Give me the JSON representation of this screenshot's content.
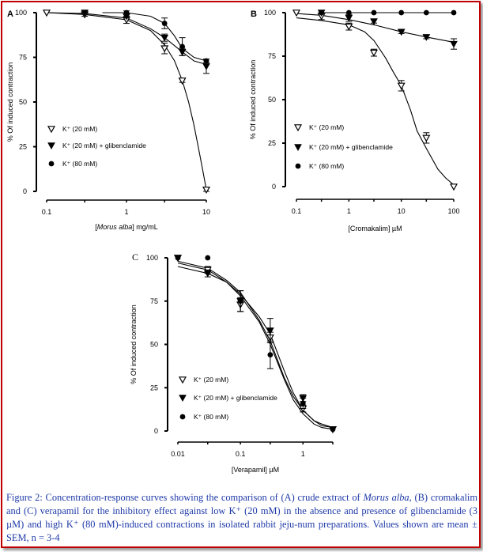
{
  "chart_data": [
    {
      "type": "line",
      "panel": "A",
      "xlabel_pre": "[",
      "xlabel_italic": "Morus alba",
      "xlabel_post": "] mg/mL",
      "ylabel": "% Of induced contraction",
      "xscale": "log",
      "xlim": [
        0.1,
        10
      ],
      "ylim": [
        0,
        100
      ],
      "xticks": [
        0.1,
        0.3,
        1,
        3,
        10
      ],
      "xticklabels": [
        "0.1",
        "1",
        "10"
      ],
      "xticklabel_values": [
        0.1,
        1,
        10
      ],
      "yticks": [
        0,
        25,
        50,
        75,
        100
      ],
      "yticklabels": [
        "0",
        "25",
        "50",
        "75",
        "100"
      ],
      "legend": [
        "K⁺ (20 mM)",
        "K⁺ (20 mM) + glibenclamide",
        "K⁺ (80 mM)"
      ],
      "series": [
        {
          "name": "K⁺ (20 mM)",
          "marker": "open-triangle",
          "x": [
            0.1,
            0.3,
            1,
            3,
            5,
            10
          ],
          "y": [
            100,
            99,
            96,
            80,
            62,
            1
          ],
          "err": [
            0,
            1,
            2,
            3,
            1,
            1
          ],
          "curve": [
            [
              0.1,
              100
            ],
            [
              0.3,
              99
            ],
            [
              1,
              96
            ],
            [
              2,
              90
            ],
            [
              3,
              82
            ],
            [
              4,
              73
            ],
            [
              5,
              62
            ],
            [
              6,
              50
            ],
            [
              7,
              37
            ],
            [
              8,
              24
            ],
            [
              9,
              12
            ],
            [
              10,
              1
            ]
          ]
        },
        {
          "name": "K⁺ (20 mM) + glibenclamide",
          "marker": "filled-triangle",
          "x": [
            0.3,
            1,
            3,
            5,
            10
          ],
          "y": [
            100,
            98,
            86,
            78,
            70
          ],
          "err": [
            0,
            1,
            2,
            2,
            4
          ],
          "curve": [
            [
              0.1,
              100
            ],
            [
              0.3,
              99.5
            ],
            [
              1,
              97
            ],
            [
              2,
              91
            ],
            [
              3,
              86
            ],
            [
              5,
              78
            ],
            [
              7,
              73
            ],
            [
              10,
              71
            ]
          ]
        },
        {
          "name": "K⁺ (80 mM)",
          "marker": "filled-circle",
          "x": [
            1,
            3,
            5,
            10
          ],
          "y": [
            100,
            94,
            81,
            73
          ],
          "err": [
            1,
            3,
            5,
            1
          ],
          "curve": [
            [
              0.5,
              100
            ],
            [
              1,
              100
            ],
            [
              2,
              98
            ],
            [
              3,
              94
            ],
            [
              4,
              87
            ],
            [
              5,
              80
            ],
            [
              7,
              75
            ],
            [
              10,
              73
            ]
          ]
        }
      ]
    },
    {
      "type": "line",
      "panel": "B",
      "xlabel": "[Cromakalim] µM",
      "ylabel": "% Of induced contraction",
      "xscale": "log",
      "xlim": [
        0.1,
        100
      ],
      "ylim": [
        0,
        100
      ],
      "xticks": [
        0.1,
        0.3,
        1,
        3,
        10,
        30,
        100
      ],
      "xticklabels": [
        "0.1",
        "1",
        "10",
        "100"
      ],
      "xticklabel_values": [
        0.1,
        1,
        10,
        100
      ],
      "yticks": [
        0,
        25,
        50,
        75,
        100
      ],
      "yticklabels": [
        "0",
        "25",
        "50",
        "75",
        "100"
      ],
      "legend": [
        "K⁺ (20 mM)",
        "K⁺ (20 mM) + glibenclamide",
        "K⁺ (80 mM)"
      ],
      "series": [
        {
          "name": "K⁺ (20 mM)",
          "marker": "open-triangle",
          "x": [
            0.1,
            0.3,
            1,
            3,
            10,
            30,
            100
          ],
          "y": [
            100,
            98,
            92,
            77,
            58,
            28,
            0
          ],
          "err": [
            0,
            2,
            2,
            2,
            3,
            3,
            0
          ],
          "curve": [
            [
              0.1,
              97
            ],
            [
              0.3,
              95.5
            ],
            [
              1,
              93
            ],
            [
              2,
              89
            ],
            [
              3,
              84
            ],
            [
              5,
              74
            ],
            [
              7,
              66
            ],
            [
              10,
              58
            ],
            [
              15,
              44
            ],
            [
              20,
              32
            ],
            [
              30,
              22
            ],
            [
              50,
              10
            ],
            [
              70,
              5
            ],
            [
              100,
              1
            ]
          ]
        },
        {
          "name": "K⁺ (20 mM) + glibenclamide",
          "marker": "filled-triangle",
          "x": [
            0.3,
            1,
            3,
            10,
            30,
            100
          ],
          "y": [
            100,
            97,
            95,
            89,
            86,
            82
          ],
          "err": [
            0,
            2,
            1,
            1,
            1,
            3
          ],
          "curve": [
            [
              0.1,
              99.5
            ],
            [
              0.3,
              98.5
            ],
            [
              1,
              96
            ],
            [
              3,
              93
            ],
            [
              10,
              89
            ],
            [
              30,
              86
            ],
            [
              100,
              83
            ]
          ]
        },
        {
          "name": "K⁺ (80 mM)",
          "marker": "filled-circle",
          "x": [
            0.3,
            1,
            3,
            10,
            30,
            100
          ],
          "y": [
            100,
            100,
            100,
            100,
            100,
            100
          ],
          "err": [
            0,
            0,
            0,
            0,
            0,
            0
          ],
          "curve": [
            [
              0.3,
              100
            ],
            [
              100,
              100
            ]
          ]
        }
      ]
    },
    {
      "type": "line",
      "panel": "C",
      "xlabel": "[Verapamil] µM",
      "ylabel": "% Of induced contraction",
      "xscale": "log",
      "xlim": [
        0.01,
        3
      ],
      "ylim": [
        0,
        100
      ],
      "xticks": [
        0.01,
        0.03,
        0.1,
        0.3,
        1,
        3
      ],
      "xticklabels": [
        "0.01",
        "0.1",
        "1"
      ],
      "xticklabel_values": [
        0.01,
        0.1,
        1
      ],
      "yticks": [
        0,
        25,
        50,
        75,
        100
      ],
      "yticklabels": [
        "0",
        "25",
        "50",
        "75",
        "100"
      ],
      "legend": [
        "K⁺ (20 mM)",
        "K⁺ (20 mM) + glibenclamide",
        "K⁺ (80 mM)"
      ],
      "series": [
        {
          "name": "K⁺ (20 mM)",
          "marker": "open-triangle",
          "x": [
            0.01,
            0.03,
            0.1,
            0.3,
            1,
            3
          ],
          "y": [
            100,
            93,
            73,
            54,
            13,
            1
          ],
          "err": [
            0,
            2,
            4,
            3,
            2,
            0
          ],
          "curve": [
            [
              0.01,
              97
            ],
            [
              0.03,
              93
            ],
            [
              0.06,
              86
            ],
            [
              0.1,
              79
            ],
            [
              0.2,
              66
            ],
            [
              0.3,
              56
            ],
            [
              0.5,
              35
            ],
            [
              0.7,
              22
            ],
            [
              1,
              12
            ],
            [
              1.5,
              6
            ],
            [
              2,
              3
            ],
            [
              3,
              2
            ]
          ]
        },
        {
          "name": "K⁺ (20 mM) + glibenclamide",
          "marker": "filled-triangle",
          "x": [
            0.01,
            0.03,
            0.1,
            0.3,
            1,
            3
          ],
          "y": [
            100,
            91,
            75,
            58,
            19,
            1
          ],
          "err": [
            0,
            2,
            6,
            7,
            2,
            0
          ],
          "curve": [
            [
              0.01,
              98
            ],
            [
              0.03,
              94
            ],
            [
              0.06,
              87
            ],
            [
              0.1,
              80
            ],
            [
              0.2,
              64
            ],
            [
              0.3,
              52
            ],
            [
              0.5,
              31
            ],
            [
              0.7,
              20
            ],
            [
              1,
              12
            ],
            [
              1.5,
              6
            ],
            [
              2,
              4
            ],
            [
              3,
              2
            ]
          ]
        },
        {
          "name": "K⁺ (80 mM)",
          "marker": "filled-circle",
          "x": [
            0.01,
            0.03,
            0.1,
            0.3,
            1,
            3
          ],
          "y": [
            100,
            100,
            75,
            44,
            16,
            1
          ],
          "err": [
            0,
            0,
            6,
            8,
            3,
            0
          ],
          "curve": [
            [
              0.01,
              95
            ],
            [
              0.03,
              91
            ],
            [
              0.06,
              86
            ],
            [
              0.1,
              78
            ],
            [
              0.2,
              63
            ],
            [
              0.3,
              50
            ],
            [
              0.5,
              30
            ],
            [
              0.7,
              18
            ],
            [
              1,
              10
            ],
            [
              1.5,
              4
            ],
            [
              2,
              2
            ],
            [
              3,
              1
            ]
          ]
        }
      ]
    }
  ],
  "caption": {
    "part1": "Figure 2: Concentration-response curves showing the comparison of (A) crude extract of ",
    "italic": "Morus alba,",
    "part2": " (B) cromakalim and (C) verapamil for the inhibitory effect against low K⁺ (20 mM) in the absence and presence of glibenclamide (3 µM) and high K⁺ (80 mM)-induced contractions in isolated rabbit jeju-num preparations. Values shown are mean ± SEM, n = 3-4"
  },
  "colors": {
    "frame": "#c00000",
    "caption": "#1f3aa8",
    "ink": "#000000"
  }
}
